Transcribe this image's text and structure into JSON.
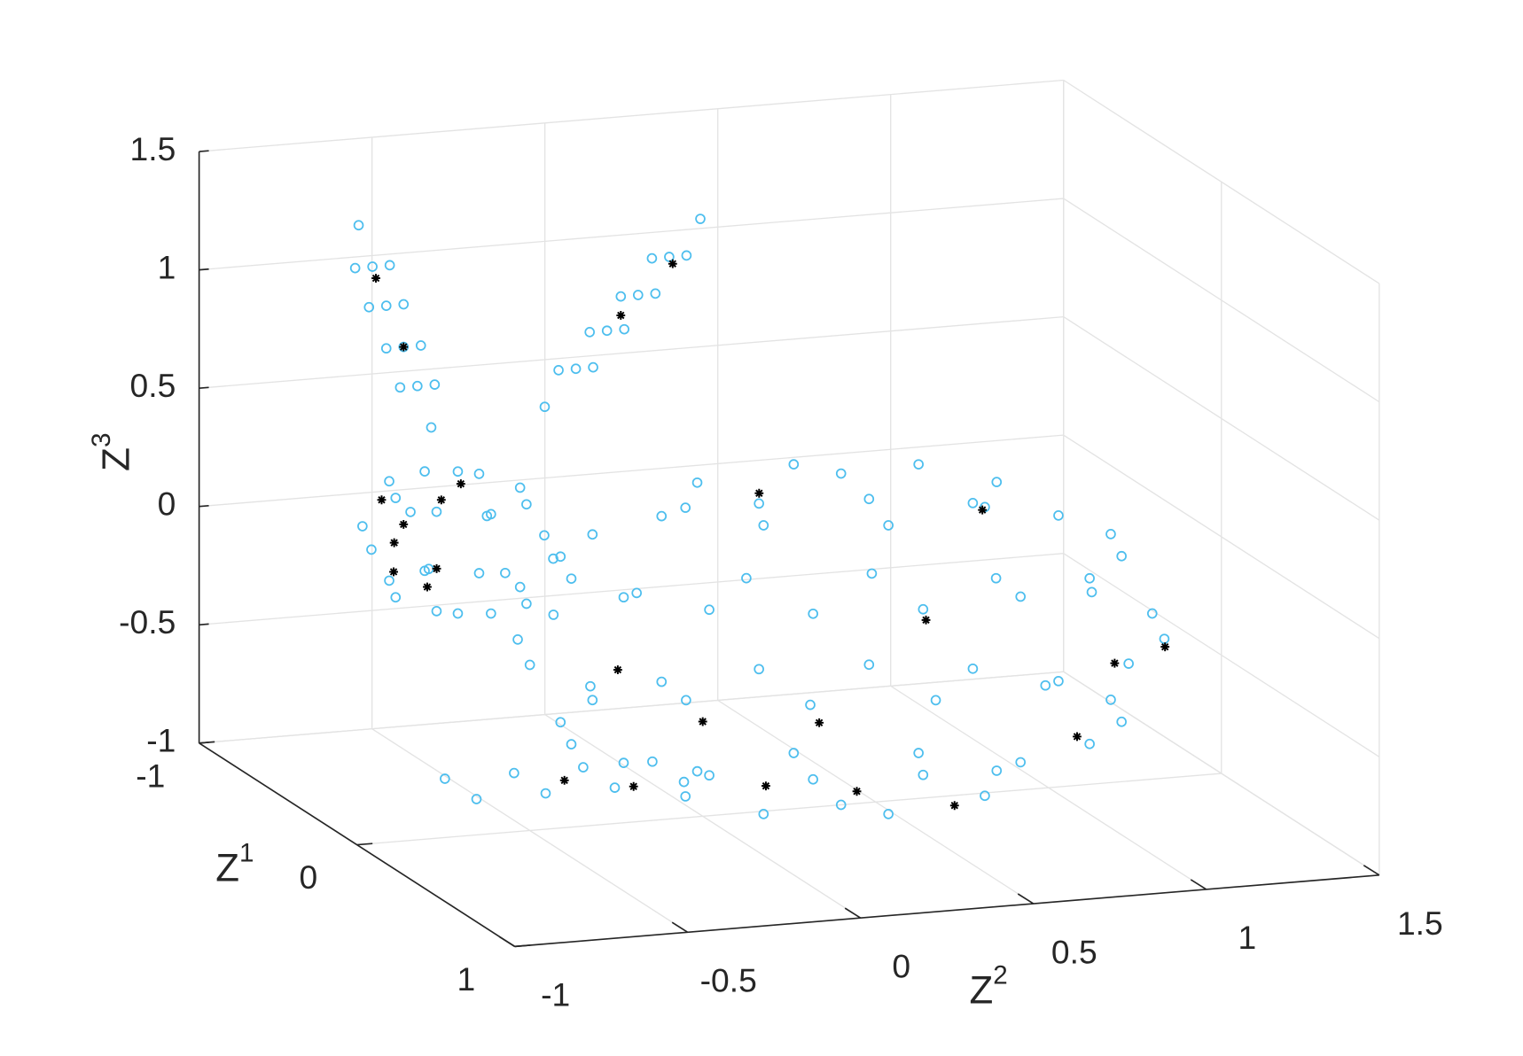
{
  "chart_data": {
    "type": "scatter3d",
    "xlabel": "Z1",
    "ylabel": "Z2",
    "zlabel": "Z3",
    "xlim": [
      -1,
      1
    ],
    "ylim": [
      -1,
      1.5
    ],
    "zlim": [
      -1,
      1.5
    ],
    "xticks": [
      -1,
      0,
      1
    ],
    "yticks": [
      -1,
      -0.5,
      0,
      0.5,
      1,
      1.5
    ],
    "zticks": [
      -1,
      -0.5,
      0,
      0.5,
      1,
      1.5
    ],
    "grid": true,
    "series": [
      {
        "color": "#4dbeee",
        "marker": "o",
        "x": [
          0.6,
          0.55,
          0.42,
          0.23,
          0,
          -0.23,
          -0.42,
          -0.55,
          -0.6,
          -0.55,
          -0.42,
          -0.23,
          0,
          0.23,
          0.42,
          0.55,
          0.52,
          0.48,
          0.37,
          0.2,
          0,
          -0.2,
          -0.37,
          -0.48,
          -0.52,
          -0.48,
          -0.37,
          -0.2,
          0,
          0.2,
          0.37,
          0.48,
          0.52,
          0.48,
          0.37,
          0.2,
          0,
          -0.2,
          -0.37,
          -0.48,
          -0.52,
          -0.48,
          -0.37,
          -0.2,
          0,
          0.2,
          0.37,
          0.48,
          0.3,
          0.21,
          0,
          -0.21,
          -0.3,
          -0.21,
          0,
          0.21,
          0.3,
          0.21,
          0,
          -0.21,
          -0.3,
          -0.21,
          0,
          0.21,
          0,
          0,
          -0.2,
          -0.29,
          -0.5,
          -0.71,
          -0.8,
          -0.71,
          -0.5,
          -0.29,
          -0.29,
          -0.35,
          -0.5,
          -0.65,
          -0.71,
          -0.65,
          -0.5,
          -0.35,
          -0.29,
          -0.35,
          -0.5,
          -0.65,
          -0.71,
          -0.65,
          -0.5,
          -0.35,
          -0.5,
          -0.5,
          -0.8,
          -0.8,
          -0.8,
          -0.8,
          -0.8,
          -0.8,
          -0.8,
          -0.8,
          -0.8,
          -0.8,
          -0.8,
          -0.8,
          -0.8,
          -0.8,
          -0.3,
          -0.3,
          -0.3,
          -0.3,
          -0.3,
          -0.3,
          -0.3,
          -0.3,
          -0.3,
          -0.3,
          -0.3,
          -0.3,
          -0.3,
          -0.3,
          -0.1,
          -0.1,
          -0.1,
          -0.1,
          0.1,
          0.1,
          0.1,
          0.1
        ],
        "y": [
          0.4,
          0.74,
          1.04,
          1.23,
          1.3,
          1.23,
          1.04,
          0.74,
          0.4,
          0.06,
          -0.24,
          -0.43,
          -0.5,
          -0.43,
          -0.24,
          0.06,
          0.4,
          0.7,
          0.95,
          1.12,
          1.18,
          1.12,
          0.95,
          0.7,
          0.4,
          0.1,
          -0.15,
          -0.32,
          -0.38,
          -0.32,
          -0.15,
          0.1,
          0.4,
          0.7,
          0.95,
          1.12,
          1.18,
          1.12,
          0.95,
          0.7,
          0.4,
          0.1,
          -0.15,
          -0.32,
          -0.38,
          -0.32,
          -0.15,
          0.1,
          0.4,
          0.72,
          0.85,
          0.72,
          0.4,
          0.08,
          -0.05,
          0.08,
          0.4,
          0.72,
          0.85,
          0.72,
          0.4,
          0.08,
          -0.05,
          0.08,
          0.4,
          0.4,
          -0.48,
          -0.3,
          -0.23,
          -0.3,
          -0.48,
          -0.66,
          -0.73,
          -0.66,
          -0.48,
          -0.35,
          -0.3,
          -0.35,
          -0.48,
          -0.61,
          -0.66,
          -0.61,
          -0.48,
          -0.35,
          -0.3,
          -0.35,
          -0.48,
          -0.61,
          -0.66,
          -0.61,
          -0.48,
          -0.48,
          -0.42,
          -0.46,
          -0.5,
          -0.55,
          -0.59,
          -0.63,
          -0.51,
          -0.55,
          -0.6,
          -0.64,
          -0.41,
          -0.45,
          -0.5,
          -0.54,
          -0.32,
          -0.23,
          -0.14,
          -0.05,
          0.04,
          0.13,
          -0.28,
          -0.19,
          -0.1,
          -0.01,
          -0.18,
          -0.09,
          0,
          0.09,
          -0.7,
          -0.5,
          -0.3,
          -0.1,
          -0.7,
          -0.5,
          -0.3,
          -0.1
        ],
        "z": [
          -0.3,
          -0.3,
          -0.3,
          -0.3,
          -0.3,
          -0.3,
          -0.3,
          -0.3,
          -0.3,
          -0.3,
          -0.3,
          -0.3,
          -0.3,
          -0.3,
          -0.3,
          -0.3,
          0.05,
          0.05,
          0.05,
          0.05,
          0.05,
          0.05,
          0.05,
          0.05,
          0.05,
          0.05,
          0.05,
          0.05,
          0.05,
          0.05,
          0.05,
          0.05,
          -0.65,
          -0.65,
          -0.65,
          -0.65,
          -0.65,
          -0.65,
          -0.65,
          -0.65,
          -0.65,
          -0.65,
          -0.65,
          -0.65,
          -0.65,
          -0.65,
          -0.65,
          -0.65,
          0.31,
          0.31,
          0.31,
          0.31,
          0.31,
          0.31,
          0.31,
          0.31,
          -0.91,
          -0.91,
          -0.91,
          -0.91,
          -0.91,
          -0.91,
          -0.91,
          -0.91,
          0.4,
          -1,
          0,
          0,
          0,
          0,
          0,
          0,
          0,
          0,
          0.21,
          0.21,
          0.21,
          0.21,
          0.21,
          0.21,
          0.21,
          0.21,
          -0.21,
          -0.21,
          -0.21,
          -0.21,
          -0.21,
          -0.21,
          -0.21,
          -0.21,
          0.3,
          -0.3,
          0.35,
          0.53,
          0.7,
          0.88,
          1.05,
          1.23,
          0.53,
          0.7,
          0.88,
          1.05,
          0.53,
          0.7,
          0.88,
          1.05,
          0.64,
          0.79,
          0.94,
          1.08,
          1.23,
          1.38,
          0.79,
          0.94,
          1.08,
          1.23,
          0.79,
          0.94,
          1.08,
          1.23,
          -0.8,
          -0.8,
          -0.8,
          -0.8,
          -0.8,
          -0.8,
          -0.8,
          -0.8
        ]
      },
      {
        "color": "#000000",
        "marker": "*",
        "x": [
          -0.75,
          -0.7,
          -0.78,
          -0.72,
          -0.65,
          -0.8,
          -0.7,
          -0.6,
          -0.8,
          -0.8,
          -0.3,
          -0.3,
          0.3,
          0.1,
          0.4,
          -0.2,
          0.2,
          0.5,
          0,
          -0.3,
          0.3,
          0.1,
          -0.1,
          0.4,
          0,
          0
        ],
        "y": [
          -0.55,
          -0.45,
          -0.4,
          -0.6,
          -0.5,
          -0.5,
          -0.38,
          -0.62,
          -0.5,
          -0.58,
          -0.1,
          0.05,
          0.2,
          0.6,
          0.9,
          0.9,
          1.1,
          0.5,
          0,
          0.3,
          1.2,
          0.4,
          -0.2,
          0,
          -0.4,
          -0.2
        ],
        "z": [
          -0.1,
          -0.2,
          0.05,
          0.1,
          -0.25,
          -0.05,
          0.15,
          -0.15,
          0.7,
          1,
          1,
          1.2,
          -0.5,
          -0.2,
          -0.6,
          0.1,
          -0.4,
          -0.8,
          -0.6,
          0.2,
          -0.3,
          -0.9,
          -0.4,
          -0.7,
          -0.8,
          -0.85
        ]
      }
    ]
  }
}
